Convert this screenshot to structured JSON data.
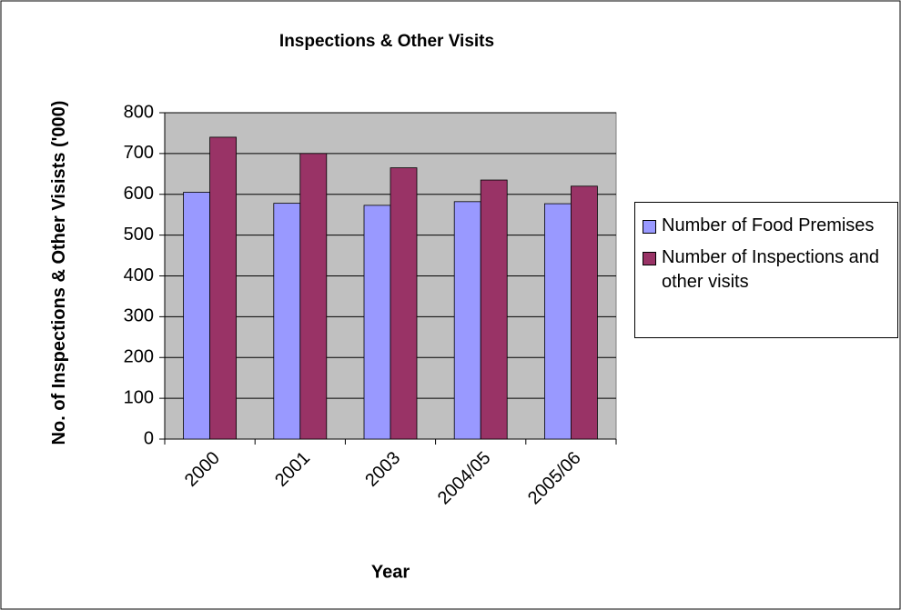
{
  "chart_data": {
    "type": "bar",
    "title": "Inspections & Other Visits",
    "x_label": "Year",
    "y_label": "No. of Inspections & Other Visists ('000)",
    "categories": [
      "2000",
      "2001",
      "2003",
      "2004/05",
      "2005/06"
    ],
    "series": [
      {
        "name": "Number of Food Premises",
        "color": "#9999ff",
        "values": [
          605,
          578,
          573,
          582,
          577
        ]
      },
      {
        "name": "Number of Inspections and other visits",
        "color": "#993366",
        "values": [
          740,
          700,
          665,
          635,
          620
        ]
      }
    ],
    "ylim": [
      0,
      800
    ],
    "yticks": [
      0,
      100,
      200,
      300,
      400,
      500,
      600,
      700,
      800
    ],
    "grid": true,
    "plot_background": "#c0c0c0",
    "legend": "right"
  }
}
